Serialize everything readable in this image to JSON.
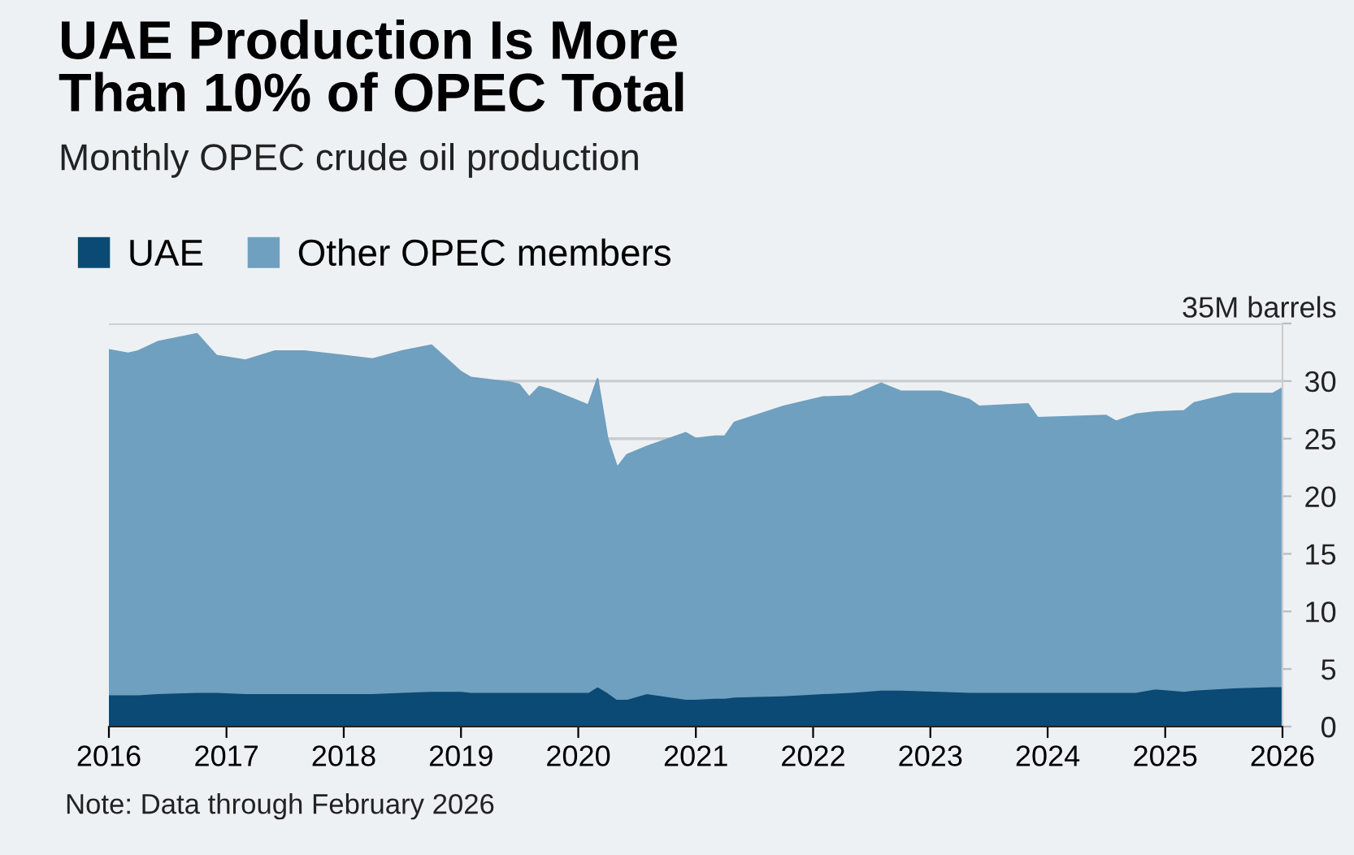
{
  "chart_data": {
    "type": "area",
    "stacked": true,
    "title": "UAE Production Is More\nThan 10% of OPEC Total",
    "subtitle": "Monthly OPEC crude oil production",
    "x": [
      "2016-01",
      "2016-03",
      "2016-04",
      "2016-06",
      "2016-10",
      "2016-12",
      "2017-03",
      "2017-06",
      "2017-09",
      "2018-01",
      "2018-04",
      "2018-07",
      "2018-10",
      "2019-01",
      "2019-02",
      "2019-06",
      "2019-07",
      "2019-08",
      "2019-09",
      "2019-10",
      "2020-02",
      "2020-03",
      "2020-04",
      "2020-05",
      "2020-06",
      "2020-08",
      "2020-12",
      "2021-01",
      "2021-03",
      "2021-04",
      "2021-05",
      "2021-10",
      "2022-02",
      "2022-05",
      "2022-08",
      "2022-10",
      "2023-02",
      "2023-05",
      "2023-06",
      "2023-11",
      "2023-12",
      "2024-07",
      "2024-08",
      "2024-10",
      "2024-12",
      "2025-03",
      "2025-04",
      "2025-08",
      "2025-12",
      "2026-01"
    ],
    "series": [
      {
        "name": "UAE",
        "color": "#0b4a74",
        "values": [
          2.8,
          2.8,
          2.8,
          2.9,
          3.0,
          3.0,
          2.9,
          2.9,
          2.9,
          2.9,
          2.9,
          3.0,
          3.1,
          3.1,
          3.0,
          3.0,
          3.0,
          3.0,
          3.0,
          3.0,
          3.0,
          3.5,
          3.0,
          2.4,
          2.4,
          2.9,
          2.4,
          2.4,
          2.5,
          2.5,
          2.6,
          2.7,
          2.9,
          3.0,
          3.2,
          3.2,
          3.1,
          3.0,
          3.0,
          3.0,
          3.0,
          3.0,
          3.0,
          3.0,
          3.3,
          3.1,
          3.2,
          3.4,
          3.5,
          3.5
        ]
      },
      {
        "name": "Other OPEC members",
        "color": "#6fa0bf",
        "values": [
          29.9,
          29.6,
          29.8,
          30.5,
          31.1,
          29.2,
          28.9,
          29.7,
          29.7,
          29.3,
          29.0,
          29.6,
          30.0,
          27.7,
          27.3,
          26.9,
          26.7,
          25.6,
          26.5,
          26.3,
          24.9,
          26.7,
          22.0,
          20.1,
          21.2,
          21.4,
          23.1,
          22.6,
          22.7,
          22.7,
          23.8,
          25.1,
          25.7,
          25.7,
          26.6,
          25.9,
          26.0,
          25.4,
          24.8,
          25.0,
          23.8,
          24.0,
          23.5,
          24.1,
          24.0,
          24.3,
          24.9,
          25.5,
          25.4,
          25.9
        ]
      }
    ],
    "xlim": [
      "2016-01",
      "2026-01"
    ],
    "xticks": [
      "2016",
      "2017",
      "2018",
      "2019",
      "2020",
      "2021",
      "2022",
      "2023",
      "2024",
      "2025",
      "2026"
    ],
    "ylim": [
      0,
      35
    ],
    "yticks": [
      0,
      5,
      10,
      15,
      20,
      25,
      30,
      {
        "value": 35,
        "label": "35M barrels"
      }
    ],
    "grid": "y",
    "legend": "top left",
    "annotations": [
      "Note: Data through February 2026"
    ]
  }
}
